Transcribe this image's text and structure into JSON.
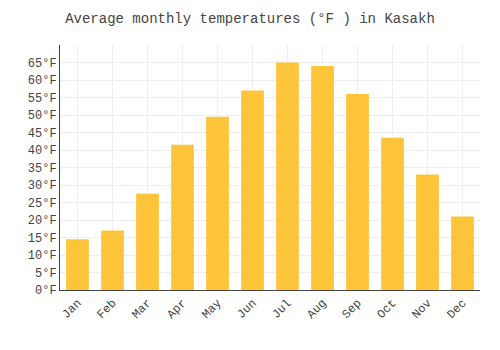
{
  "chart_data": {
    "type": "bar",
    "title": "Average monthly temperatures (°F ) in Kasakh",
    "categories": [
      "Jan",
      "Feb",
      "Mar",
      "Apr",
      "May",
      "Jun",
      "Jul",
      "Aug",
      "Sep",
      "Oct",
      "Nov",
      "Dec"
    ],
    "values": [
      14.5,
      17,
      27.5,
      41.5,
      49.5,
      57,
      65,
      64,
      56,
      43.5,
      33,
      21
    ],
    "color": "#FFC53A",
    "ylim": [
      0,
      70
    ],
    "yticks": [
      {
        "value": 0,
        "label": "0°F"
      },
      {
        "value": 5,
        "label": "5°F"
      },
      {
        "value": 10,
        "label": "10°F"
      },
      {
        "value": 15,
        "label": "15°F"
      },
      {
        "value": 20,
        "label": "20°F"
      },
      {
        "value": 25,
        "label": "25°F"
      },
      {
        "value": 30,
        "label": "30°F"
      },
      {
        "value": 35,
        "label": "35°F"
      },
      {
        "value": 40,
        "label": "40°F"
      },
      {
        "value": 45,
        "label": "45°F"
      },
      {
        "value": 50,
        "label": "50°F"
      },
      {
        "value": 55,
        "label": "55°F"
      },
      {
        "value": 60,
        "label": "60°F"
      },
      {
        "value": 65,
        "label": "65°F"
      }
    ],
    "grid": true
  }
}
